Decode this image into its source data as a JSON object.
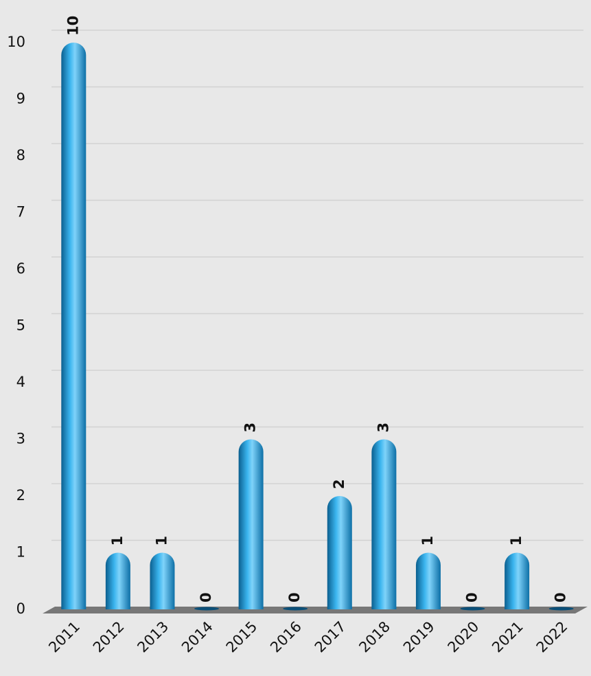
{
  "chart_data": {
    "type": "bar",
    "categories": [
      "2011",
      "2012",
      "2013",
      "2014",
      "2015",
      "2016",
      "2017",
      "2018",
      "2019",
      "2020",
      "2021",
      "2022"
    ],
    "values": [
      10,
      1,
      1,
      0,
      3,
      0,
      2,
      3,
      1,
      0,
      1,
      0
    ],
    "color": "#1a9ad6",
    "ylim": [
      0,
      10
    ],
    "yticks": [
      0,
      1,
      2,
      3,
      4,
      5,
      6,
      7,
      8,
      9,
      10
    ],
    "grid": true,
    "data_labels": true
  }
}
